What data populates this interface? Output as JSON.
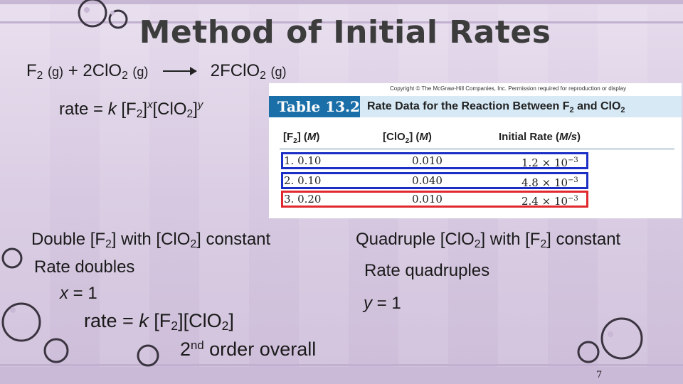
{
  "slide": {
    "title": "Method of Initial Rates",
    "reaction": {
      "reactant_1": "F",
      "reactant_1_sub": "2",
      "reactant_1_state": "(g)",
      "plus": " + 2ClO",
      "reactant_2_sub": "2",
      "reactant_2_state": "(g)",
      "product": "2FClO",
      "product_sub": "2",
      "product_state": "(g)"
    },
    "rate_law_general": {
      "prefix": "rate = ",
      "k": "k",
      "f2": " [F",
      "f2_sub": "2",
      "bracket_close": "]",
      "exp_x": "x",
      "clo2": "[ClO",
      "clo2_sub": "2",
      "bracket_close_2": "]",
      "exp_y": "y"
    },
    "left_block": {
      "line1_a": "Double [F",
      "line1_sub": "2",
      "line1_b": "] with [ClO",
      "line1_sub2": "2",
      "line1_c": "] constant",
      "line2": "Rate doubles",
      "line3_var": "x",
      "line3_rest": " = 1"
    },
    "right_block": {
      "line1_a": "Quadruple [ClO",
      "line1_sub": "2",
      "line1_b": "] with [F",
      "line1_sub2": "2",
      "line1_c": "] constant",
      "line2": "Rate quadruples",
      "line3_var": "y",
      "line3_rest": " = 1"
    },
    "rate_law_final": {
      "prefix": "rate = ",
      "k": "k",
      "a": " [F",
      "sub1": "2",
      "b": "][ClO",
      "sub2": "2",
      "c": "]"
    },
    "order": {
      "num": "2",
      "sup": "nd",
      "rest": " order overall"
    },
    "page_number": "7"
  },
  "table": {
    "copyright": "Copyright © The McGraw-Hill Companies, Inc. Permission required for reproduction or display",
    "number": "Table 13.2",
    "caption_a": "Rate Data for the Reaction Between F",
    "caption_sub": "2",
    "caption_b": " and ClO",
    "caption_sub2": "2",
    "headers": {
      "f2_a": "[F",
      "f2_sub": "2",
      "f2_b": "] (",
      "f2_unit": "M",
      "f2_c": ")",
      "clo2_a": "[ClO",
      "clo2_sub": "2",
      "clo2_b": "] (",
      "clo2_unit": "M",
      "clo2_c": ")",
      "rate_a": "Initial Rate (",
      "rate_unit": "M/s",
      "rate_c": ")"
    },
    "rows": [
      {
        "label": "1. 0.10",
        "clo2": "0.010",
        "rate": "1.2 × 10",
        "exp": "−3",
        "highlight": "#1c2fc4"
      },
      {
        "label": "2. 0.10",
        "clo2": "0.040",
        "rate": "4.8 × 10",
        "exp": "−3",
        "highlight": "#1c2fc4"
      },
      {
        "label": "3. 0.20",
        "clo2": "0.010",
        "rate": "2.4 × 10",
        "exp": "−3",
        "highlight": "#e0282e"
      }
    ]
  },
  "colors": {
    "background": "#d9cde3",
    "table_header_blue": "#1a6fa8",
    "table_caption_bg": "#d6e9f5",
    "highlight_blue": "#1c2fc4",
    "highlight_red": "#e0282e"
  }
}
